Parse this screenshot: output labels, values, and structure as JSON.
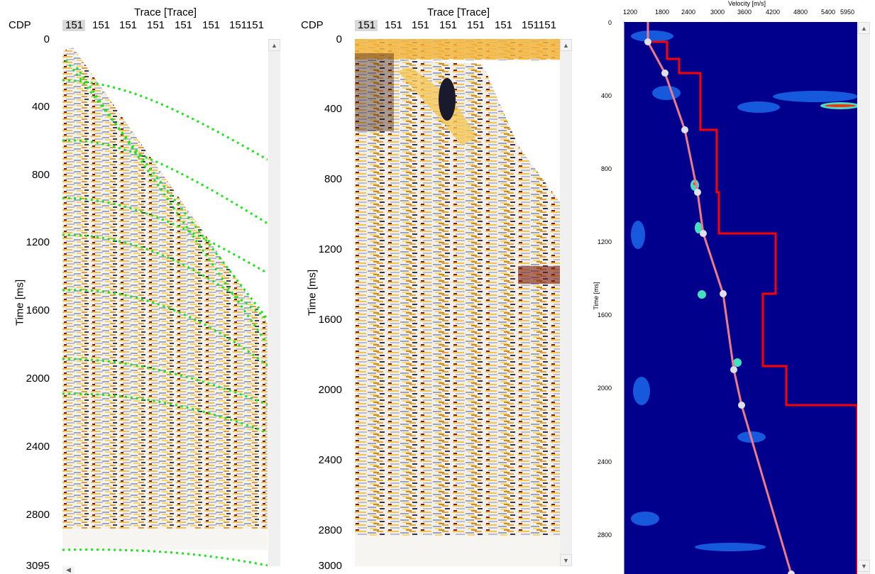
{
  "panel1": {
    "title": "Trace [Trace]",
    "cdp_label": "CDP",
    "top_ticks": [
      "151",
      "151",
      "151",
      "151",
      "151",
      "151",
      "151151"
    ],
    "ylabel": "Time [ms]",
    "yticks": [
      "0",
      "400",
      "800",
      "1200",
      "1600",
      "2000",
      "2400",
      "2800",
      "3095"
    ]
  },
  "panel2": {
    "title": "Trace [Trace]",
    "cdp_label": "CDP",
    "top_ticks": [
      "151",
      "151",
      "151",
      "151",
      "151",
      "151",
      "151151"
    ],
    "ylabel": "Time [ms]",
    "yticks": [
      "0",
      "400",
      "800",
      "1200",
      "1600",
      "2000",
      "2400",
      "2800",
      "3000"
    ]
  },
  "panel3": {
    "title": "Velocity [m/s]",
    "xticks": [
      "1200",
      "1800",
      "2400",
      "3000",
      "3600",
      "4200",
      "4800",
      "5400",
      "5950"
    ],
    "ylabel": "Time [ms]",
    "yticks": [
      "0",
      "400",
      "800",
      "1200",
      "1600",
      "2000",
      "2400",
      "2800"
    ]
  },
  "colors": {
    "pick_green": "#19e619",
    "velocity_red": "#ff0000",
    "semblance_bg": "#00008c"
  }
}
